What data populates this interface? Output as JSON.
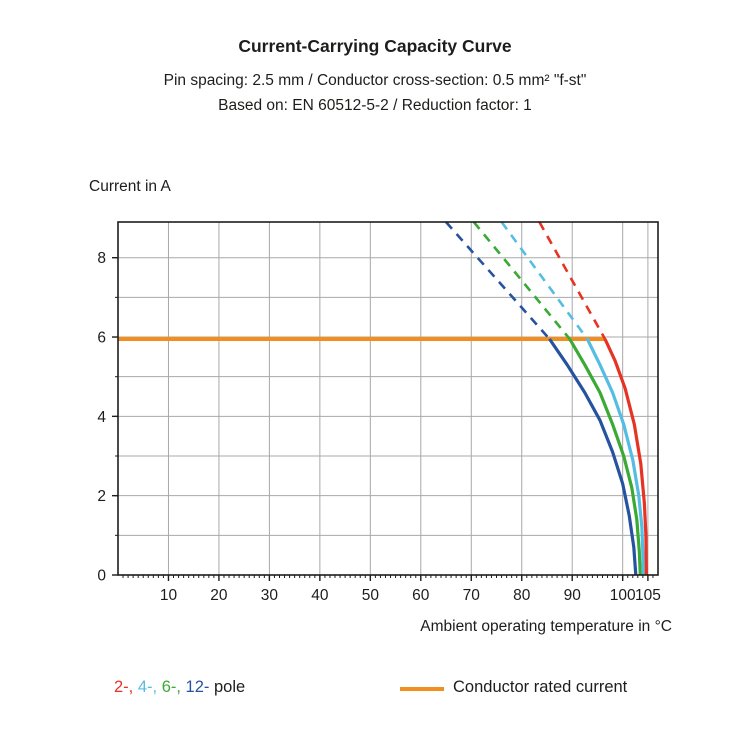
{
  "header": {
    "title": "Current-Carrying Capacity Curve",
    "subtitle1": "Pin spacing: 2.5 mm / Conductor cross-section: 0.5 mm² \"f-st\"",
    "subtitle2": "Based on: EN 60512-5-2 / Reduction factor: 1"
  },
  "chart_data": {
    "type": "line",
    "title": "Current-Carrying Capacity Curve",
    "xlabel": "Ambient operating temperature in °C",
    "ylabel": "Current in A",
    "xlim": [
      0,
      107
    ],
    "ylim": [
      0,
      8.9
    ],
    "x_ticks": [
      10,
      20,
      30,
      40,
      50,
      60,
      70,
      80,
      90,
      100,
      105
    ],
    "y_ticks": [
      0,
      2,
      4,
      6,
      8
    ],
    "x_grid_step": 10,
    "y_grid_step": 1,
    "grid": true,
    "colors": {
      "grid": "#a8a8a8",
      "frame": "#1d1d1b",
      "rated": "#f28e1e",
      "pole2": "#e63323",
      "pole4": "#55bde2",
      "pole6": "#3aaa35",
      "pole12": "#26539f"
    },
    "rated_current": {
      "label": "Conductor rated current",
      "value": 5.95,
      "x_start": 0,
      "x_end": 96.5
    },
    "series": [
      {
        "name": "12-pole",
        "color": "#26539f",
        "dashed_points": [
          [
            65,
            8.9
          ],
          [
            85.5,
            5.95
          ]
        ],
        "solid_points": [
          [
            85.5,
            5.95
          ],
          [
            89,
            5.3
          ],
          [
            92.5,
            4.6
          ],
          [
            95.5,
            3.9
          ],
          [
            98,
            3.1
          ],
          [
            100,
            2.3
          ],
          [
            101.3,
            1.5
          ],
          [
            102.2,
            0.7
          ],
          [
            102.6,
            0
          ]
        ]
      },
      {
        "name": "6-pole",
        "color": "#3aaa35",
        "dashed_points": [
          [
            70.5,
            8.9
          ],
          [
            89.5,
            5.95
          ]
        ],
        "solid_points": [
          [
            89.5,
            5.95
          ],
          [
            92.5,
            5.3
          ],
          [
            95.5,
            4.6
          ],
          [
            98,
            3.8
          ],
          [
            100.2,
            3.0
          ],
          [
            101.8,
            2.2
          ],
          [
            102.8,
            1.4
          ],
          [
            103.3,
            0.6
          ],
          [
            103.5,
            0
          ]
        ]
      },
      {
        "name": "4-pole",
        "color": "#55bde2",
        "dashed_points": [
          [
            76,
            8.9
          ],
          [
            93,
            5.95
          ]
        ],
        "solid_points": [
          [
            93,
            5.95
          ],
          [
            95.5,
            5.3
          ],
          [
            98,
            4.6
          ],
          [
            100.2,
            3.8
          ],
          [
            102,
            2.9
          ],
          [
            103.2,
            2.0
          ],
          [
            103.8,
            1.2
          ],
          [
            104.0,
            0.5
          ],
          [
            104.1,
            0
          ]
        ]
      },
      {
        "name": "2-pole",
        "color": "#e63323",
        "dashed_points": [
          [
            83.5,
            8.9
          ],
          [
            96.5,
            5.95
          ]
        ],
        "solid_points": [
          [
            96.5,
            5.95
          ],
          [
            98.5,
            5.4
          ],
          [
            100.5,
            4.7
          ],
          [
            102.3,
            3.8
          ],
          [
            103.6,
            2.8
          ],
          [
            104.3,
            1.8
          ],
          [
            104.6,
            1.0
          ],
          [
            104.7,
            0
          ]
        ]
      }
    ]
  },
  "legend": {
    "pole_items": [
      {
        "label": "2-",
        "color": "#e63323"
      },
      {
        "label": "4-",
        "color": "#55bde2"
      },
      {
        "label": "6-",
        "color": "#3aaa35"
      },
      {
        "label": "12-",
        "color": "#26539f"
      }
    ],
    "separator": ", ",
    "suffix": " pole",
    "rated_label": "Conductor rated current",
    "rated_color": "#f28e1e"
  }
}
